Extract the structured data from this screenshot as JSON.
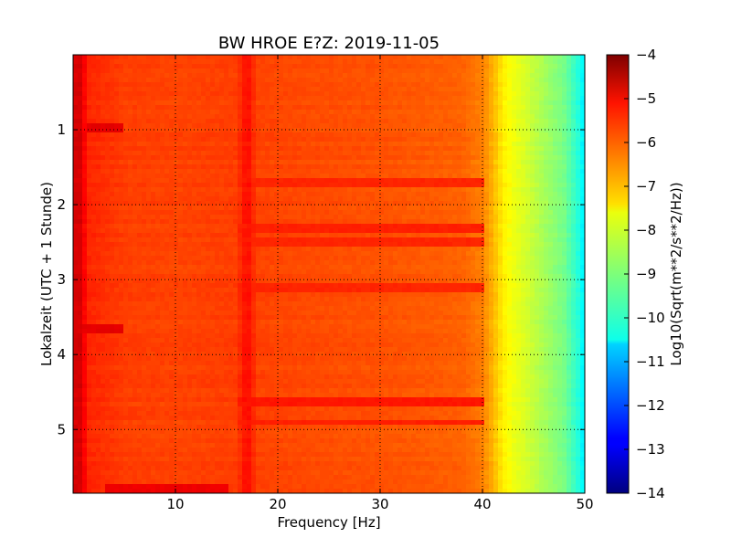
{
  "chart_data": {
    "type": "heatmap",
    "title": "BW HROE E?Z: 2019-11-05",
    "xlabel": "Frequency [Hz]",
    "ylabel": "Lokalzeit (UTC + 1 Stunde)",
    "colorbar_label": "Log10(Sqrt(m**2/s**2/Hz))",
    "xlim": [
      0,
      50
    ],
    "ylim": [
      0,
      5.85
    ],
    "y_inverted": true,
    "x_ticks": [
      10,
      20,
      30,
      40,
      50
    ],
    "x_tick_labels": [
      "10",
      "20",
      "30",
      "40",
      "50"
    ],
    "y_ticks": [
      1,
      2,
      3,
      4,
      5
    ],
    "y_tick_labels": [
      "1",
      "2",
      "3",
      "4",
      "5"
    ],
    "colorbar_range": [
      -14,
      -4
    ],
    "colorbar_ticks": [
      -4,
      -5,
      -6,
      -7,
      -8,
      -9,
      -10,
      -11,
      -12,
      -13,
      -14
    ],
    "colorbar_tick_labels": [
      "−4",
      "−5",
      "−6",
      "−7",
      "−8",
      "−9",
      "−10",
      "−11",
      "−12",
      "−13",
      "−14"
    ],
    "colormap": "jet",
    "grid": "dotted",
    "frequency_profile": {
      "frequency_hz": [
        0,
        0.5,
        1.5,
        5,
        10,
        16,
        17,
        18,
        25,
        30,
        38,
        40,
        41,
        42,
        43,
        44,
        46,
        48,
        49.5,
        50
      ],
      "log10_psd": [
        -5.0,
        -4.7,
        -5.6,
        -5.85,
        -5.9,
        -5.85,
        -5.3,
        -5.9,
        -6.0,
        -6.05,
        -6.2,
        -6.5,
        -7.0,
        -7.6,
        -7.9,
        -8.1,
        -8.6,
        -9.1,
        -10.0,
        -10.5
      ]
    },
    "time_features": [
      {
        "time_h": 0.97,
        "freq_range_hz": [
          1.5,
          5
        ],
        "log10_psd": -5.0
      },
      {
        "time_h": 1.7,
        "freq_range_hz": [
          16,
          40
        ],
        "log10_psd": -5.6
      },
      {
        "time_h": 2.3,
        "freq_range_hz": [
          16,
          40
        ],
        "log10_psd": -5.55
      },
      {
        "time_h": 2.5,
        "freq_range_hz": [
          16,
          40
        ],
        "log10_psd": -5.6
      },
      {
        "time_h": 3.1,
        "freq_range_hz": [
          16,
          40
        ],
        "log10_psd": -5.6
      },
      {
        "time_h": 3.65,
        "freq_range_hz": [
          1,
          5
        ],
        "log10_psd": -5.0
      },
      {
        "time_h": 4.65,
        "freq_range_hz": [
          16,
          40
        ],
        "log10_psd": -5.45
      },
      {
        "time_h": 4.9,
        "freq_range_hz": [
          16,
          40
        ],
        "log10_psd": -5.55
      },
      {
        "time_h": 5.78,
        "freq_range_hz": [
          3,
          15
        ],
        "log10_psd": -5.1
      }
    ]
  }
}
